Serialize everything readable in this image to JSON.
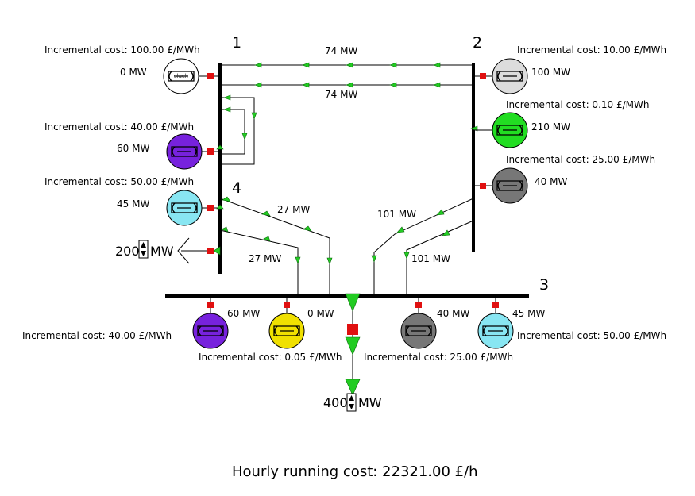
{
  "buses": [
    {
      "label": "1"
    },
    {
      "label": "2"
    },
    {
      "label": "3"
    },
    {
      "label": "4"
    }
  ],
  "lines": {
    "l12a": "74 MW",
    "l12b": "74 MW",
    "l43a": "27 MW",
    "l43b": "27 MW",
    "l23a": "101 MW",
    "l23b": "101 MW"
  },
  "generators": [
    {
      "name": "gen-1-slack",
      "cost": "Incremental cost: 100.00 £/MWh",
      "output": "0 MW",
      "color": "#ffffff",
      "glyph": "slack"
    },
    {
      "name": "gen-1-4",
      "cost": "Incremental cost: 40.00 £/MWh",
      "output": "60 MW",
      "color": "#7722dd"
    },
    {
      "name": "gen-4",
      "cost": "Incremental cost: 50.00 £/MWh",
      "output": "45 MW",
      "color": "#88e6f2"
    },
    {
      "name": "gen-2-a",
      "cost": "Incremental cost: 10.00 £/MWh",
      "output": "100 MW",
      "color": "#dcdcdc"
    },
    {
      "name": "gen-2-b",
      "cost": "Incremental cost: 0.10 £/MWh",
      "output": "210 MW",
      "color": "#22dd22"
    },
    {
      "name": "gen-2-c",
      "cost": "Incremental cost: 25.00 £/MWh",
      "output": "40 MW",
      "color": "#777777"
    },
    {
      "name": "gen-3-a",
      "cost": "Incremental cost: 40.00 £/MWh",
      "output": "60 MW",
      "color": "#7722dd"
    },
    {
      "name": "gen-3-b",
      "cost": "Incremental cost: 0.05 £/MWh",
      "output": "0 MW",
      "color": "#f0e000"
    },
    {
      "name": "gen-3-c",
      "cost": "Incremental cost: 25.00 £/MWh",
      "output": "40 MW",
      "color": "#777777"
    },
    {
      "name": "gen-3-d",
      "cost": "Incremental cost: 50.00 £/MWh",
      "output": "45 MW",
      "color": "#88e6f2"
    }
  ],
  "loads": {
    "bus4": {
      "value": "200",
      "unit": "MW"
    },
    "bus3": {
      "value": "400",
      "unit": "MW"
    }
  },
  "footer": {
    "cost": "Hourly running cost: 22321.00 £/h"
  },
  "colors": {
    "arrow": "#22cc22",
    "breaker": "#e01010"
  }
}
